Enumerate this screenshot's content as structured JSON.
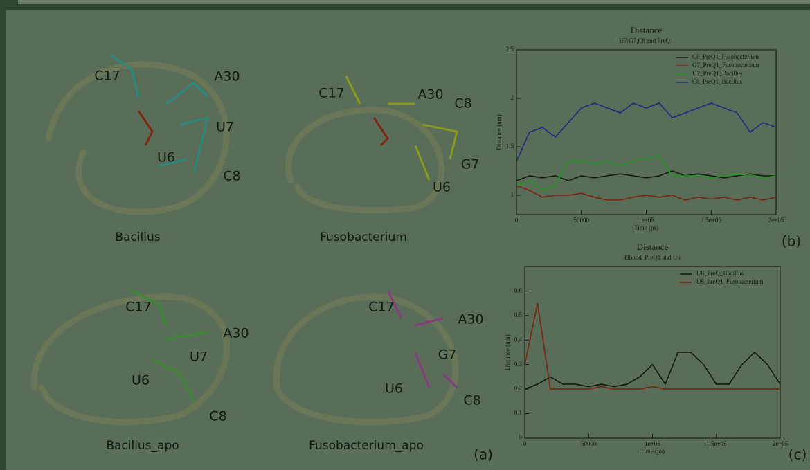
{
  "structures_label": "(a)",
  "structures": [
    {
      "name": "Bacillus",
      "residues": [
        "C17",
        "A30",
        "U7",
        "U6",
        "C8"
      ]
    },
    {
      "name": "Fusobacterium",
      "residues": [
        "C17",
        "A30",
        "C8",
        "G7",
        "U6"
      ]
    },
    {
      "name": "Bacillus_apo",
      "residues": [
        "C17",
        "A30",
        "U7",
        "U6",
        "C8"
      ]
    },
    {
      "name": "Fusobacterium_apo",
      "residues": [
        "C17",
        "A30",
        "G7",
        "U6",
        "C8"
      ]
    }
  ],
  "chart_data": [
    {
      "type": "line",
      "panel_label": "(b)",
      "title": "Distance",
      "subtitle": "U7/G7,C8 and PreQ1",
      "xlabel": "Time (ps)",
      "ylabel": "Distance (nm)",
      "legend": "upper right",
      "x": [
        0,
        10000,
        20000,
        30000,
        40000,
        50000,
        60000,
        70000,
        80000,
        90000,
        100000,
        110000,
        120000,
        130000,
        140000,
        150000,
        160000,
        170000,
        180000,
        190000,
        200000
      ],
      "xlim": [
        0,
        200000
      ],
      "xticks": [
        0,
        50000,
        {
          "value": 100000,
          "label": "1e+05"
        },
        {
          "value": 150000,
          "label": "1.5e+05"
        },
        {
          "value": 200000,
          "label": "2e+05"
        }
      ],
      "ylim": [
        0.8,
        2.5
      ],
      "yticks": [
        1,
        1.5,
        2,
        2.5
      ],
      "series": [
        {
          "name": "C8_PreQ1_Fusobacterium",
          "color": "#0e1a0e",
          "values": [
            1.15,
            1.2,
            1.18,
            1.2,
            1.15,
            1.2,
            1.18,
            1.2,
            1.22,
            1.2,
            1.18,
            1.2,
            1.25,
            1.2,
            1.22,
            1.2,
            1.18,
            1.2,
            1.22,
            1.2,
            1.2
          ]
        },
        {
          "name": "G7_PreQ1_Fusobacterium",
          "color": "#7a2210",
          "values": [
            1.1,
            1.05,
            0.98,
            1.0,
            1.0,
            1.02,
            0.98,
            0.95,
            0.95,
            0.98,
            1.0,
            0.98,
            1.0,
            0.95,
            0.98,
            0.96,
            0.98,
            0.95,
            0.98,
            0.95,
            0.98
          ]
        },
        {
          "name": "U7_PreQ1_Bacillus",
          "color": "#1f9a1f",
          "values": [
            1.1,
            1.15,
            1.05,
            1.1,
            1.35,
            1.35,
            1.32,
            1.35,
            1.3,
            1.35,
            1.38,
            1.4,
            1.2,
            1.2,
            1.2,
            1.18,
            1.2,
            1.22,
            1.2,
            1.18,
            1.2
          ]
        },
        {
          "name": "C8_PreQ1_Bacillus",
          "color": "#1c2a82",
          "values": [
            1.35,
            1.65,
            1.7,
            1.6,
            1.75,
            1.9,
            1.95,
            1.9,
            1.85,
            1.95,
            1.9,
            1.95,
            1.8,
            1.85,
            1.9,
            1.95,
            1.9,
            1.85,
            1.65,
            1.75,
            1.7
          ]
        }
      ]
    },
    {
      "type": "line",
      "panel_label": "(c)",
      "title": "Distance",
      "subtitle": "Hbond_PreQ1 and U6",
      "xlabel": "Time (ps)",
      "ylabel": "Distance (nm)",
      "legend": "upper right",
      "x": [
        0,
        10000,
        20000,
        30000,
        40000,
        50000,
        60000,
        70000,
        80000,
        90000,
        100000,
        110000,
        120000,
        130000,
        140000,
        150000,
        160000,
        170000,
        180000,
        190000,
        200000
      ],
      "xlim": [
        0,
        200000
      ],
      "xticks": [
        0,
        50000,
        {
          "value": 100000,
          "label": "1e+05"
        },
        {
          "value": 150000,
          "label": "1.5e+05"
        },
        {
          "value": 200000,
          "label": "2e+05"
        }
      ],
      "ylim": [
        0,
        0.7
      ],
      "yticks": [
        0,
        0.1,
        0.2,
        0.3,
        0.4,
        0.5,
        0.6
      ],
      "series": [
        {
          "name": "U6_PreQ_Bacillus",
          "color": "#0e1a0e",
          "values": [
            0.2,
            0.22,
            0.25,
            0.22,
            0.22,
            0.21,
            0.22,
            0.21,
            0.22,
            0.25,
            0.3,
            0.22,
            0.35,
            0.35,
            0.3,
            0.22,
            0.22,
            0.3,
            0.35,
            0.3,
            0.22
          ]
        },
        {
          "name": "U6_PreQ1_Fusobacterium",
          "color": "#7a2210",
          "values": [
            0.3,
            0.55,
            0.2,
            0.2,
            0.2,
            0.2,
            0.21,
            0.2,
            0.2,
            0.2,
            0.21,
            0.2,
            0.2,
            0.2,
            0.2,
            0.2,
            0.2,
            0.2,
            0.2,
            0.2,
            0.2
          ]
        }
      ]
    }
  ]
}
